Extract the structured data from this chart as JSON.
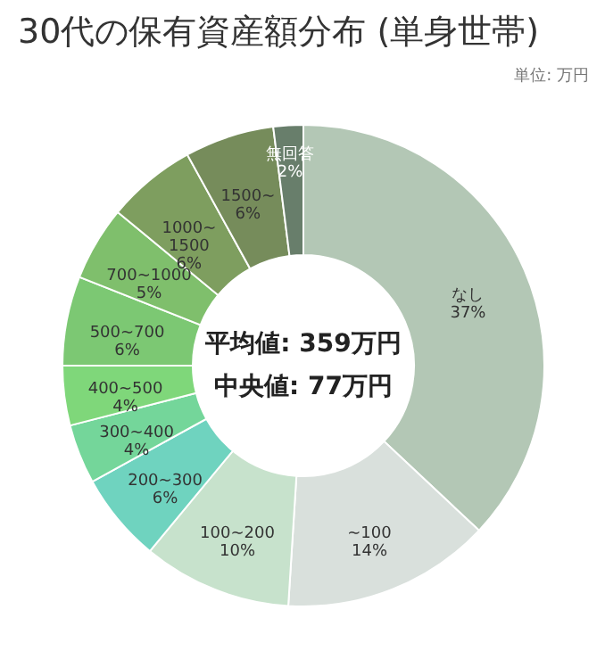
{
  "chart_data": {
    "type": "donut",
    "title": "30代の保有資産額分布 (単身世帯)",
    "categories": [
      "なし",
      "~100",
      "100~200",
      "200~300",
      "300~400",
      "400~500",
      "500~700",
      "700~1000",
      "1000~1500",
      "1500~",
      "無回答"
    ],
    "values": [
      37,
      14,
      10,
      6,
      4,
      4,
      6,
      5,
      6,
      6,
      2
    ],
    "value_labels": [
      "37%",
      "14%",
      "10%",
      "6%",
      "4%",
      "4%",
      "6%",
      "5%",
      "6%",
      "6%",
      "2%"
    ],
    "colors": [
      "#b3c7b5",
      "#d9e0dc",
      "#c7e2cc",
      "#6fd3bf",
      "#74d69a",
      "#7fd77a",
      "#7cc873",
      "#7fbf6c",
      "#7e9e5f",
      "#768c5b",
      "#687e6b"
    ],
    "annotations": [
      "単位: 万円",
      "平均値: 359万円",
      "中央値: 77万円"
    ],
    "legend": false
  }
}
